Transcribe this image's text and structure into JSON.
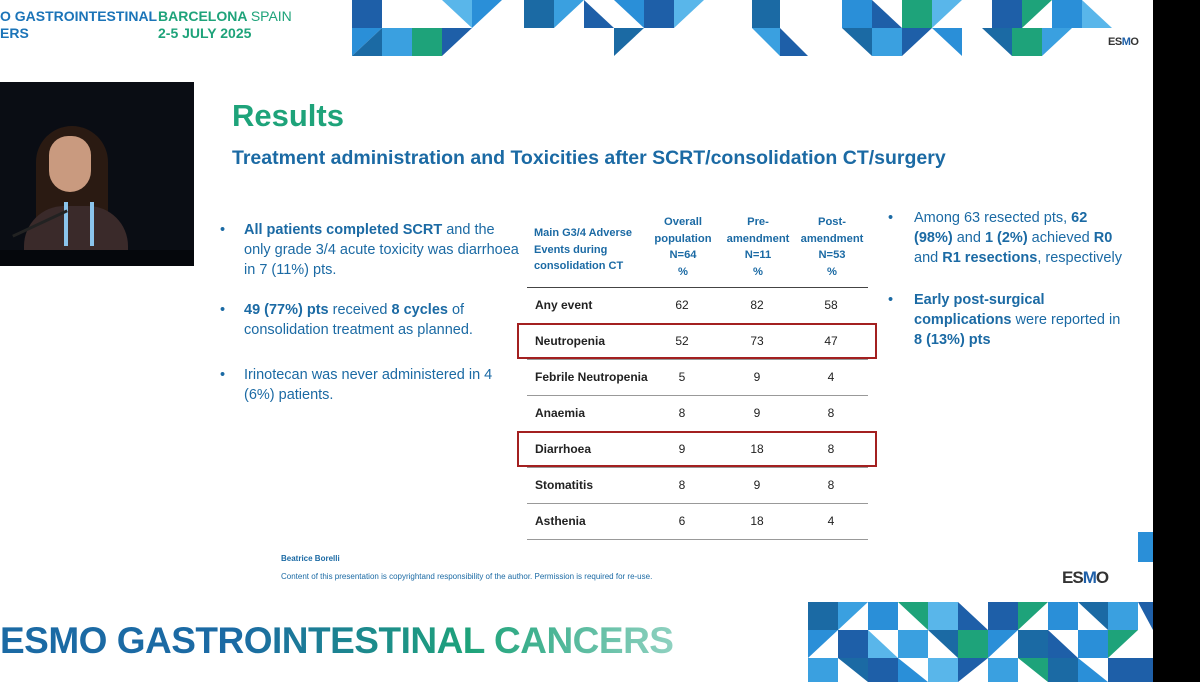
{
  "header": {
    "conference_line1_a": "O GASTROINTESTINAL",
    "conference_line2": "ERS",
    "location_city": "BARCELONA",
    "location_country": "SPAIN",
    "dates": "2-5 JULY 2025"
  },
  "logo_top": {
    "text_pre": "ES",
    "text_o": "M",
    "text_post": "O"
  },
  "slide": {
    "title": "Results",
    "subtitle": "Treatment administration and Toxicities after SCRT/consolidation CT/surgery"
  },
  "left_bullets": [
    {
      "bold": "All patients completed SCRT",
      "rest": " and the only grade 3/4 acute toxicity was diarrhoea in 7 (11%) pts."
    },
    {
      "bold": "49 (77%) pts",
      "mid": " received ",
      "bold2": "8 cycles",
      "rest": " of consolidation treatment as planned."
    },
    {
      "bold": "",
      "rest": "Irinotecan was never administered in 4 (6%) patients."
    }
  ],
  "table": {
    "header_col0": "Main G3/4 Adverse Events during consolidation CT",
    "columns": [
      {
        "line1": "Overall",
        "line2": "population",
        "line3": "N=64",
        "unit": "%"
      },
      {
        "line1": "Pre-",
        "line2": "amendment",
        "line3": "N=11",
        "unit": "%"
      },
      {
        "line1": "Post-",
        "line2": "amendment",
        "line3": "N=53",
        "unit": "%"
      }
    ],
    "rows": [
      {
        "label": "Any event",
        "v": [
          "62",
          "82",
          "58"
        ],
        "highlight": false
      },
      {
        "label": "Neutropenia",
        "v": [
          "52",
          "73",
          "47"
        ],
        "highlight": true
      },
      {
        "label": "Febrile Neutropenia",
        "v": [
          "5",
          "9",
          "4"
        ],
        "highlight": false
      },
      {
        "label": "Anaemia",
        "v": [
          "8",
          "9",
          "8"
        ],
        "highlight": false
      },
      {
        "label": "Diarrhoea",
        "v": [
          "9",
          "18",
          "8"
        ],
        "highlight": true
      },
      {
        "label": "Stomatitis",
        "v": [
          "8",
          "9",
          "8"
        ],
        "highlight": false
      },
      {
        "label": "Asthenia",
        "v": [
          "6",
          "18",
          "4"
        ],
        "highlight": false
      }
    ]
  },
  "right_bullets": {
    "b1_pre": "Among 63 resected pts, ",
    "b1_bold1": "62 (98%)",
    "b1_mid": " and ",
    "b1_bold2": "1 (2%)",
    "b1_mid2": " achieved ",
    "b1_bold3": "R0",
    "b1_mid3": " and ",
    "b1_bold4": "R1 resections",
    "b1_post": ", respectively",
    "b2_bold": "Early post-surgical complications",
    "b2_mid": " were reported in ",
    "b2_bold2": "8 (13%) pts"
  },
  "footer": {
    "author": "Beatrice Borelli",
    "copyright": "Content of this presentation is copyrightand responsibility of the author. Permission is required for re-use.",
    "banner": "ESMO GASTROINTESTINAL CANCERS"
  },
  "logo_bottom": {
    "text_pre": "ES",
    "text_o": "M",
    "text_post": "O"
  },
  "colors": {
    "green": "#1ea37a",
    "blue": "#1b6aa4",
    "highlight": "#a32020"
  }
}
